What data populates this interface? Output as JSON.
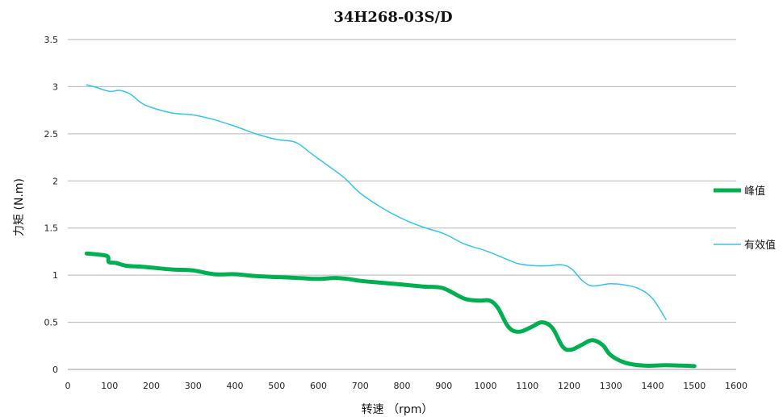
{
  "chart_data": {
    "type": "line",
    "title": "34H268-03S/D",
    "xlabel": "转速 （rpm）",
    "ylabel": "力矩 (N.m)",
    "xlim": [
      0,
      1600
    ],
    "ylim": [
      0,
      3.5
    ],
    "x_ticks": [
      0,
      100,
      200,
      300,
      400,
      500,
      600,
      700,
      800,
      900,
      1000,
      1100,
      1200,
      1300,
      1400,
      1500,
      1600
    ],
    "y_ticks": [
      0,
      0.5,
      1,
      1.5,
      2,
      2.5,
      3,
      3.5
    ],
    "y_tick_labels": [
      "0",
      "0.5",
      "1",
      "1.5",
      "2",
      "2.5",
      "3",
      "3.5"
    ],
    "grid": "horizontal",
    "legend_position": "right",
    "series": [
      {
        "name": "峰值",
        "color": "#00b050",
        "line_width": "thick",
        "points": [
          [
            45,
            1.23
          ],
          [
            70,
            1.22
          ],
          [
            95,
            1.2
          ],
          [
            98,
            1.14
          ],
          [
            115,
            1.13
          ],
          [
            140,
            1.1
          ],
          [
            175,
            1.09
          ],
          [
            200,
            1.08
          ],
          [
            250,
            1.06
          ],
          [
            300,
            1.05
          ],
          [
            350,
            1.01
          ],
          [
            400,
            1.01
          ],
          [
            450,
            0.99
          ],
          [
            500,
            0.98
          ],
          [
            550,
            0.97
          ],
          [
            600,
            0.96
          ],
          [
            640,
            0.97
          ],
          [
            670,
            0.96
          ],
          [
            700,
            0.94
          ],
          [
            750,
            0.92
          ],
          [
            800,
            0.9
          ],
          [
            850,
            0.88
          ],
          [
            890,
            0.87
          ],
          [
            910,
            0.84
          ],
          [
            950,
            0.75
          ],
          [
            985,
            0.73
          ],
          [
            1010,
            0.73
          ],
          [
            1030,
            0.65
          ],
          [
            1055,
            0.45
          ],
          [
            1080,
            0.4
          ],
          [
            1110,
            0.45
          ],
          [
            1135,
            0.5
          ],
          [
            1160,
            0.44
          ],
          [
            1185,
            0.24
          ],
          [
            1205,
            0.21
          ],
          [
            1230,
            0.26
          ],
          [
            1255,
            0.31
          ],
          [
            1280,
            0.26
          ],
          [
            1300,
            0.15
          ],
          [
            1335,
            0.07
          ],
          [
            1380,
            0.04
          ],
          [
            1430,
            0.045
          ],
          [
            1470,
            0.04
          ],
          [
            1500,
            0.035
          ]
        ]
      },
      {
        "name": "有效值",
        "color": "#33c4f2",
        "line_width": "thin",
        "points": [
          [
            45,
            3.02
          ],
          [
            70,
            2.99
          ],
          [
            100,
            2.95
          ],
          [
            125,
            2.96
          ],
          [
            150,
            2.92
          ],
          [
            175,
            2.83
          ],
          [
            200,
            2.78
          ],
          [
            250,
            2.72
          ],
          [
            300,
            2.7
          ],
          [
            350,
            2.65
          ],
          [
            400,
            2.58
          ],
          [
            450,
            2.5
          ],
          [
            500,
            2.44
          ],
          [
            545,
            2.41
          ],
          [
            580,
            2.3
          ],
          [
            620,
            2.17
          ],
          [
            660,
            2.04
          ],
          [
            700,
            1.87
          ],
          [
            750,
            1.72
          ],
          [
            800,
            1.6
          ],
          [
            850,
            1.51
          ],
          [
            900,
            1.44
          ],
          [
            950,
            1.33
          ],
          [
            1000,
            1.26
          ],
          [
            1050,
            1.17
          ],
          [
            1080,
            1.12
          ],
          [
            1120,
            1.1
          ],
          [
            1150,
            1.1
          ],
          [
            1180,
            1.11
          ],
          [
            1205,
            1.07
          ],
          [
            1230,
            0.95
          ],
          [
            1250,
            0.89
          ],
          [
            1270,
            0.89
          ],
          [
            1300,
            0.91
          ],
          [
            1340,
            0.89
          ],
          [
            1370,
            0.85
          ],
          [
            1400,
            0.75
          ],
          [
            1432,
            0.53
          ]
        ]
      }
    ]
  }
}
